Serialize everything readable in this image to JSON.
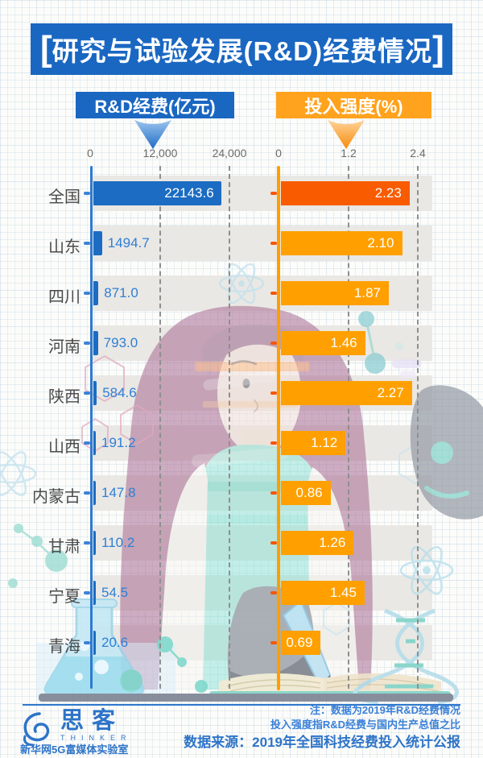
{
  "title": {
    "bracket_open": "[",
    "text": "研究与试验发展(R&D)经费情况",
    "bracket_close": "]"
  },
  "series_headers": {
    "rd": "R&D经费(亿元)",
    "intensity": "投入强度(%)"
  },
  "axes": {
    "rd_ticks": [
      "0",
      "12,000",
      "24,000"
    ],
    "intensity_ticks": [
      "0",
      "1.2",
      "2.4"
    ]
  },
  "chart_data": {
    "type": "bar",
    "orientation": "horizontal",
    "title": "研究与试验发展(R&D)经费情况",
    "categories": [
      "全国",
      "山东",
      "四川",
      "河南",
      "陕西",
      "山西",
      "内蒙古",
      "甘肃",
      "宁夏",
      "青海"
    ],
    "series": [
      {
        "name": "R&D经费(亿元)",
        "unit": "亿元",
        "values": [
          22143.6,
          1494.7,
          871.0,
          793.0,
          584.6,
          191.2,
          147.8,
          110.2,
          54.5,
          20.6
        ],
        "value_labels": [
          "22143.6",
          "1494.7",
          "871.0",
          "793.0",
          "584.6",
          "191.2",
          "147.8",
          "110.2",
          "54.5",
          "20.6"
        ],
        "xlim": [
          0,
          24000
        ],
        "ticks": [
          0,
          12000,
          24000
        ]
      },
      {
        "name": "投入强度(%)",
        "unit": "%",
        "values": [
          2.23,
          2.1,
          1.87,
          1.46,
          2.27,
          1.12,
          0.86,
          1.26,
          1.45,
          0.69
        ],
        "value_labels": [
          "2.23",
          "2.10",
          "1.87",
          "1.46",
          "2.27",
          "1.12",
          "0.86",
          "1.26",
          "1.45",
          "0.69"
        ],
        "xlim": [
          0,
          2.4
        ],
        "ticks": [
          0,
          1.2,
          2.4
        ]
      }
    ],
    "highlight_category": "全国",
    "grid": "dashed-vertical",
    "legend_position": "top"
  },
  "footer": {
    "note_line1": "注：数据为2019年R&D经费情况",
    "note_line2": "投入强度指R&D经费与国内生产总值之比",
    "source_line": "数据来源：2019年全国科技经费投入统计公报",
    "logo_cn": "思客",
    "logo_en": "THINKER",
    "logo_sub": "新华网5G富媒体实验室"
  },
  "colors": {
    "blue": "#1B6CC2",
    "blue_axis": "#2E7AD1",
    "orange": "#FFA000",
    "orange_axis": "#FF9E00",
    "orange_highlight": "#F85B00",
    "orange_tick": "#F4560A",
    "blue_tick": "#3B82D8",
    "value_blue": "#2E7FD6",
    "band": "#EAE8E4"
  }
}
